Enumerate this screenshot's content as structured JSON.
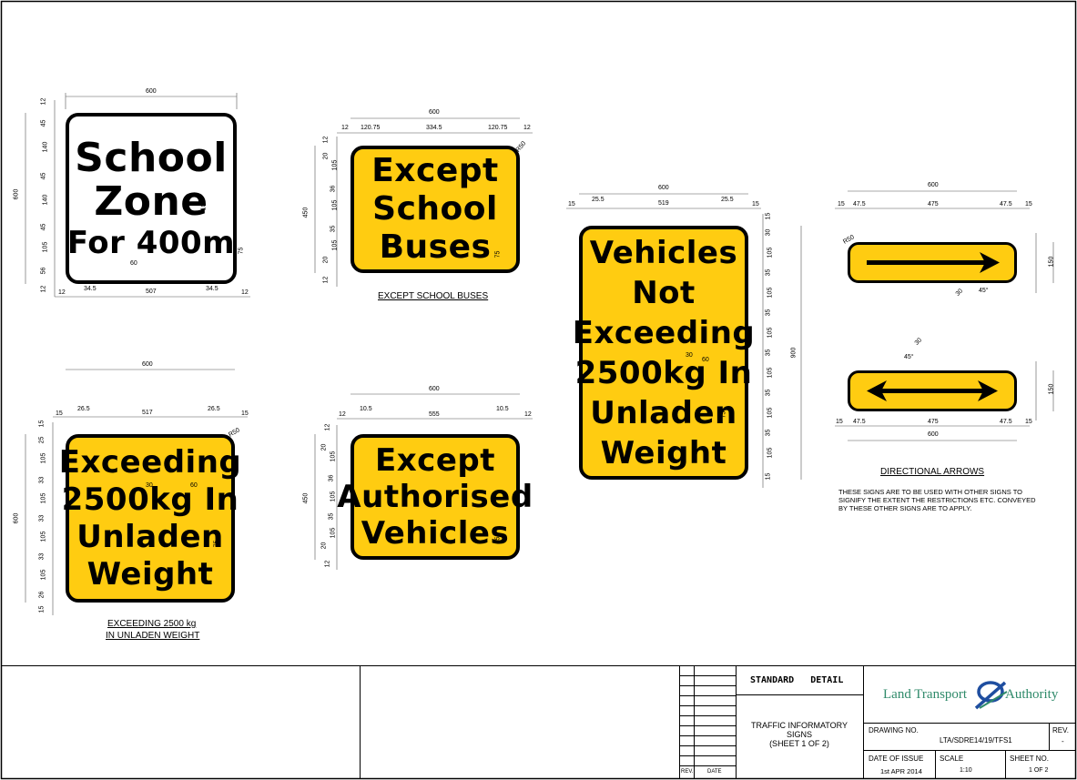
{
  "signs": {
    "school_zone": {
      "lines": [
        "School",
        "Zone",
        "For 400m"
      ]
    },
    "except_school_buses": {
      "lines": [
        "Except",
        "School",
        "Buses"
      ],
      "caption": "EXCEPT SCHOOL BUSES"
    },
    "vehicles_not_exceeding": {
      "lines": [
        "Vehicles",
        "Not",
        "Exceeding",
        "2500kg In",
        "Unladen",
        "Weight"
      ]
    },
    "exceeding_2500": {
      "lines": [
        "Exceeding",
        "2500kg In",
        "Unladen",
        "Weight"
      ],
      "caption_l1": "EXCEEDING 2500 kg",
      "caption_l2": "IN UNLADEN WEIGHT"
    },
    "except_authorised": {
      "lines": [
        "Except",
        "Authorised",
        "Vehicles"
      ]
    }
  },
  "arrows": {
    "caption": "DIRECTIONAL ARROWS",
    "note_l1": "THESE SIGNS ARE TO BE USED WITH OTHER SIGNS TO",
    "note_l2": "SIGNIFY THE EXTENT THE RESTRICTIONS ETC. CONVEYED",
    "note_l3": "BY THESE OTHER SIGNS ARE TO APPLY.",
    "angle": "45°",
    "size": "30"
  },
  "dims": {
    "d600": "600",
    "d507": "507",
    "d345": "34.5",
    "d12": "12",
    "d60": "60",
    "d100": "100",
    "d75": "75",
    "d45": "45",
    "d140": "140",
    "d105": "105",
    "d56": "56",
    "d12075": "120.75",
    "d3345": "334.5",
    "d450": "450",
    "d20": "20",
    "d36": "36",
    "d35": "35",
    "dR50": "R50",
    "d255": "25.5",
    "d519": "519",
    "d15": "15",
    "d900": "900",
    "d30": "30",
    "d475": "475",
    "d475b": "47.5",
    "d150": "150",
    "d10": "10",
    "d265": "26.5",
    "d517": "517",
    "d25": "25",
    "d33": "33",
    "d26": "26",
    "d105b": "10.5",
    "d555": "555"
  },
  "title_block": {
    "rev_label": "REV.",
    "date_label": "DATE",
    "standard_detail": "STANDARD   DETAIL",
    "title_l1": "TRAFFIC INFORMATORY",
    "title_l2": "SIGNS",
    "title_l3": "(SHEET 1 OF 2)",
    "authority_left": "Land Transport",
    "authority_right": "Authority",
    "drawing_no_label": "DRAWING NO.",
    "drawing_no": "LTA/SDRE14/19/TFS1",
    "rev_label2": "REV.",
    "rev_value": "-",
    "date_of_issue_label": "DATE OF ISSUE",
    "date_of_issue": "1st APR 2014",
    "scale_label": "SCALE",
    "scale": "1:10",
    "sheet_no_label": "SHEET NO.",
    "sheet_no": "1 OF 2"
  },
  "colors": {
    "sign_yellow": "#ffcc11",
    "logo_blue": "#1f4ea0",
    "logo_green": "#2f8a6a"
  }
}
